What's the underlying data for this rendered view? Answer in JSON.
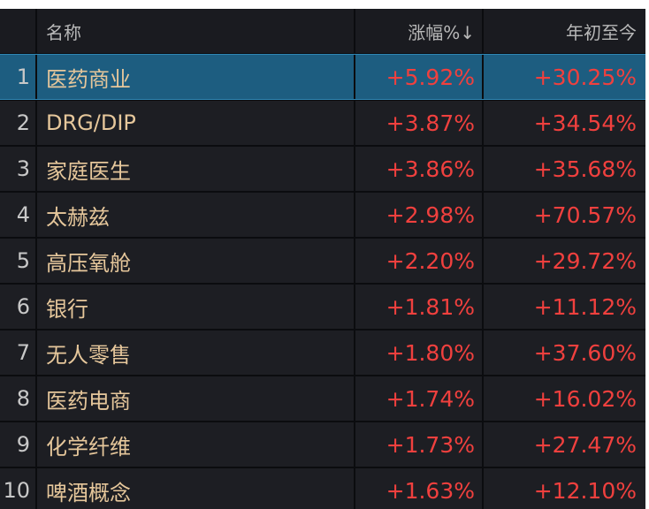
{
  "table": {
    "header": [
      "名称",
      "涨幅%↓",
      "年初至今"
    ],
    "rows": [
      [
        "1",
        "医药商业",
        "+5.92%",
        "+30.25%"
      ],
      [
        "2",
        "DRG/DIP",
        "+3.87%",
        "+34.54%"
      ],
      [
        "3",
        "家庭医生",
        "+3.86%",
        "+35.68%"
      ],
      [
        "4",
        "太赫兹",
        "+2.98%",
        "+70.57%"
      ],
      [
        "5",
        "高压氧舱",
        "+2.20%",
        "+29.72%"
      ],
      [
        "6",
        "银行",
        "+1.81%",
        "+11.12%"
      ],
      [
        "7",
        "无人零售",
        "+1.80%",
        "+37.60%"
      ],
      [
        "8",
        "医药电商",
        "+1.74%",
        "+16.02%"
      ],
      [
        "9",
        "化学纤维",
        "+1.73%",
        "+27.47%"
      ],
      [
        "10",
        "啤酒概念",
        "+1.63%",
        "+12.10%"
      ]
    ]
  }
}
